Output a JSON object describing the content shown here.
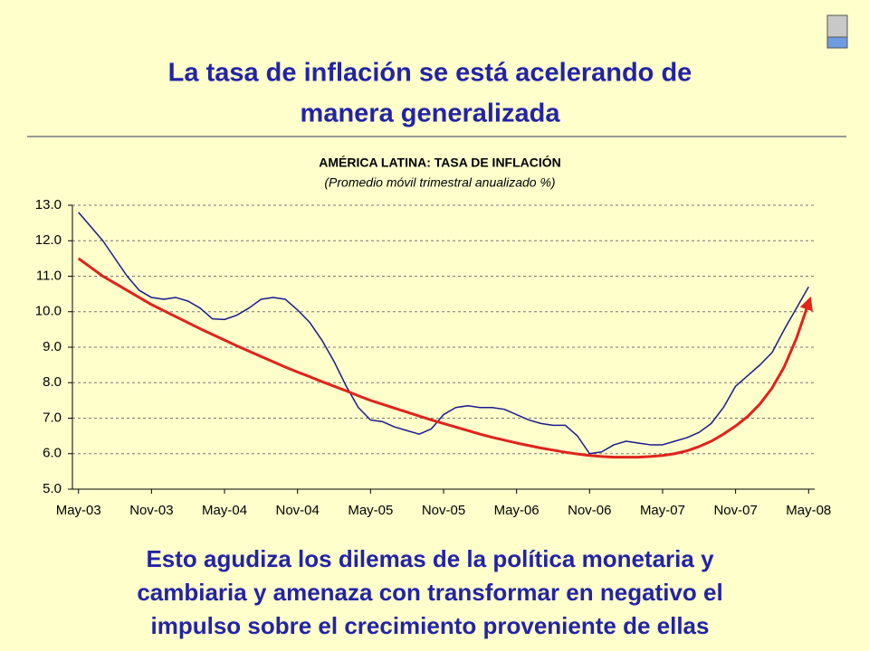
{
  "slide": {
    "headline": [
      "La tasa de inflación se está acelerando de",
      "manera generalizada"
    ],
    "footer": [
      "Esto agudiza los dilemas de la política monetaria y",
      "cambiaria y amenaza con transformar en negativo el",
      "impulso sobre el crecimiento proveniente de ellas"
    ]
  },
  "chart_data": {
    "type": "line",
    "title": "AMÉRICA LATINA: TASA DE INFLACIÓN",
    "subtitle": "(Promedio móvil trimestral anualizado %)",
    "categories": [
      "May-03",
      null,
      null,
      null,
      null,
      null,
      "Nov-03",
      null,
      null,
      null,
      null,
      null,
      "May-04",
      null,
      null,
      null,
      null,
      null,
      "Nov-04",
      null,
      null,
      null,
      null,
      null,
      "May-05",
      null,
      null,
      null,
      null,
      null,
      "Nov-05",
      null,
      null,
      null,
      null,
      null,
      "May-06",
      null,
      null,
      null,
      null,
      null,
      "Nov-06",
      null,
      null,
      null,
      null,
      null,
      "May-07",
      null,
      null,
      null,
      null,
      null,
      "Nov-07",
      null,
      null,
      null,
      null,
      null,
      "May-08"
    ],
    "series": [
      {
        "color": "#1a1a8c",
        "values": [
          12.8,
          12.4,
          12.0,
          11.5,
          11.0,
          10.6,
          10.4,
          10.35,
          10.4,
          10.3,
          10.1,
          9.8,
          9.78,
          9.9,
          10.1,
          10.35,
          10.4,
          10.35,
          10.05,
          9.7,
          9.2,
          8.6,
          7.9,
          7.3,
          6.95,
          6.9,
          6.75,
          6.65,
          6.55,
          6.7,
          7.1,
          7.3,
          7.35,
          7.3,
          7.3,
          7.25,
          7.1,
          6.95,
          6.85,
          6.8,
          6.8,
          6.5,
          6.0,
          6.05,
          6.25,
          6.35,
          6.3,
          6.25,
          6.25,
          6.35,
          6.45,
          6.6,
          6.85,
          7.3,
          7.9,
          8.2,
          8.5,
          8.85,
          9.5,
          10.1,
          10.7
        ]
      },
      {
        "color": "#e0231b",
        "arrow": true,
        "values": [
          11.5,
          11.25,
          11.0,
          10.8,
          10.6,
          10.4,
          10.2,
          10.03,
          9.86,
          9.69,
          9.52,
          9.36,
          9.2,
          9.04,
          8.89,
          8.74,
          8.59,
          8.44,
          8.3,
          8.17,
          8.03,
          7.9,
          7.77,
          7.63,
          7.5,
          7.39,
          7.28,
          7.17,
          7.06,
          6.95,
          6.85,
          6.75,
          6.65,
          6.55,
          6.46,
          6.38,
          6.3,
          6.23,
          6.16,
          6.1,
          6.04,
          5.99,
          5.95,
          5.92,
          5.9,
          5.9,
          5.9,
          5.92,
          5.95,
          6.0,
          6.08,
          6.2,
          6.35,
          6.55,
          6.78,
          7.05,
          7.4,
          7.85,
          8.45,
          9.25,
          10.25
        ]
      }
    ],
    "ylim": [
      5,
      13
    ],
    "yticks": [
      {
        "value": 5,
        "label": "5.0"
      },
      {
        "value": 6,
        "label": "6.0"
      },
      {
        "value": 7,
        "label": "7.0"
      },
      {
        "value": 8,
        "label": "8.0"
      },
      {
        "value": 9,
        "label": "9.0"
      },
      {
        "value": 10,
        "label": "10.0"
      },
      {
        "value": 11,
        "label": "11.0"
      },
      {
        "value": 12,
        "label": "12.0"
      },
      {
        "value": 13,
        "label": "13.0"
      }
    ],
    "grid": true
  }
}
